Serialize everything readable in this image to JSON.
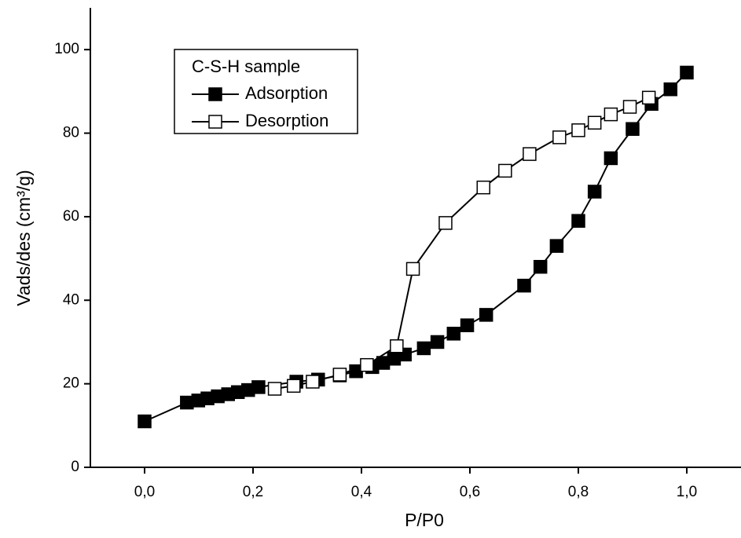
{
  "chart_data": {
    "type": "line",
    "xlabel": "P/P0",
    "ylabel": "Vads/des (cm³/g)",
    "legend_title": "C-S-H sample",
    "legend": "upper left",
    "xlim": [
      -0.1,
      1.1
    ],
    "ylim": [
      0,
      110
    ],
    "xticks": [
      {
        "value": 0,
        "label": "0,0"
      },
      {
        "value": 0.2,
        "label": "0,2"
      },
      {
        "value": 0.4,
        "label": "0,4"
      },
      {
        "value": 0.6,
        "label": "0,6"
      },
      {
        "value": 0.8,
        "label": "0,8"
      },
      {
        "value": 1,
        "label": "1,0"
      }
    ],
    "yticks": [
      0,
      20,
      40,
      60,
      80,
      100
    ],
    "series": [
      {
        "name": "Adsorption",
        "color": "#000000",
        "marker": "filled-square",
        "x": [
          0.0,
          0.078,
          0.099,
          0.116,
          0.135,
          0.154,
          0.172,
          0.191,
          0.21,
          0.28,
          0.32,
          0.36,
          0.39,
          0.42,
          0.44,
          0.46,
          0.48,
          0.515,
          0.54,
          0.57,
          0.595,
          0.63,
          0.7,
          0.73,
          0.76,
          0.8,
          0.83,
          0.86,
          0.9,
          0.935,
          0.97,
          1.0
        ],
        "values": [
          11,
          15.5,
          16,
          16.5,
          17,
          17.5,
          18,
          18.5,
          19.2,
          20.5,
          21,
          22,
          23,
          24,
          25,
          26,
          27,
          28.5,
          30,
          32,
          34,
          36.5,
          43.5,
          48,
          53,
          59,
          66,
          74,
          81,
          87,
          90.5,
          94.5
        ]
      },
      {
        "name": "Desorption",
        "color": "#000000",
        "marker": "open-square",
        "x": [
          0.24,
          0.275,
          0.31,
          0.36,
          0.41,
          0.465,
          0.495,
          0.555,
          0.625,
          0.665,
          0.71,
          0.765,
          0.8,
          0.83,
          0.86,
          0.895,
          0.93
        ],
        "values": [
          18.8,
          19.5,
          20.5,
          22.2,
          24.5,
          29,
          47.5,
          58.5,
          67,
          71,
          75,
          79,
          80.7,
          82.5,
          84.5,
          86.3,
          88.5
        ]
      }
    ]
  }
}
